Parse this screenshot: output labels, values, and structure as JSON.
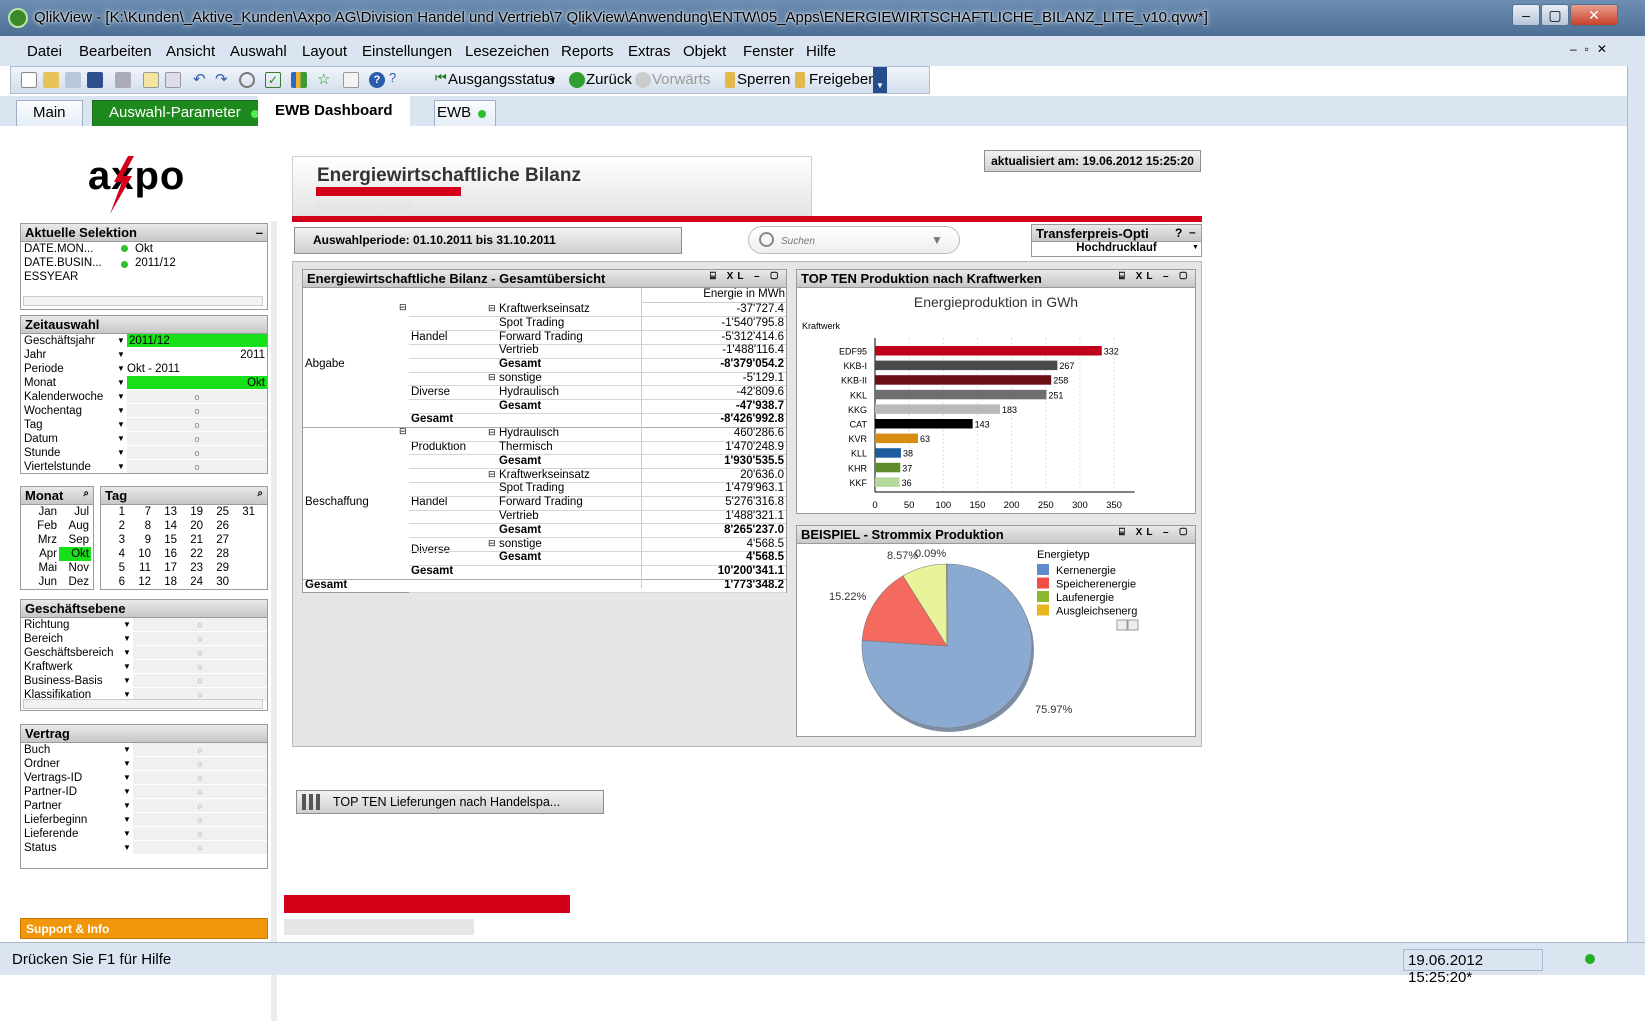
{
  "window": {
    "title": "QlikView - [K:\\Kunden\\_Aktive_Kunden\\Axpo AG\\Division Handel und Vertrieb\\7 QlikView\\Anwendung\\ENTW\\05_Apps\\ENERGIEWIRTSCHAFTLICHE_BILANZ_LITE_v10.qvw*]"
  },
  "menu": [
    "Datei",
    "Bearbeiten",
    "Ansicht",
    "Auswahl",
    "Layout",
    "Einstellungen",
    "Lesezeichen",
    "Reports",
    "Extras",
    "Objekt",
    "Fenster",
    "Hilfe"
  ],
  "toolbar": {
    "ausgangsstatus": "Ausgangsstatus",
    "zurueck": "Zurück",
    "vorwaerts": "Vorwärts",
    "sperren": "Sperren",
    "freigeben": "Freigeben"
  },
  "tabs": [
    "Main",
    "Auswahl-Parameter",
    "EWB Dashboard",
    "EWB"
  ],
  "logo": "axpo",
  "header": {
    "title": "Energiewirtschaftliche Bilanz",
    "updated": "aktualisiert am: 19.06.2012 15:25:20",
    "period": "Auswahlperiode: 01.10.2011 bis 31.10.2011",
    "search_placeholder": "Suchen"
  },
  "transfer": {
    "title": "Transferpreis-Opti",
    "help": "?",
    "value": "Hochdrucklauf"
  },
  "aktuelle_selektion": {
    "title": "Aktuelle Selektion",
    "rows": [
      {
        "field": "DATE.MON...",
        "value": "Okt"
      },
      {
        "field": "DATE.BUSIN...",
        "value": "2011/12"
      },
      {
        "field": "ESSYEAR",
        "value": ""
      }
    ]
  },
  "zeitauswahl": {
    "title": "Zeitauswahl",
    "rows": [
      {
        "label": "Geschäftsjahr",
        "value": "2011/12",
        "state": "sel"
      },
      {
        "label": "Jahr",
        "value": "2011",
        "state": "w"
      },
      {
        "label": "Periode",
        "value": "Okt - 2011",
        "state": "w"
      },
      {
        "label": "Monat",
        "value": "Okt",
        "state": "sel"
      },
      {
        "label": "Kalenderwoche",
        "value": "o",
        "state": ""
      },
      {
        "label": "Wochentag",
        "value": "o",
        "state": ""
      },
      {
        "label": "Tag",
        "value": "o",
        "state": ""
      },
      {
        "label": "Datum",
        "value": "o",
        "state": ""
      },
      {
        "label": "Stunde",
        "value": "o",
        "state": ""
      },
      {
        "label": "Viertelstunde",
        "value": "o",
        "state": ""
      }
    ]
  },
  "monat": {
    "title": "Monat",
    "col1": [
      "Jan",
      "Feb",
      "Mrz",
      "Apr",
      "Mai",
      "Jun"
    ],
    "col2": [
      "Jul",
      "Aug",
      "Sep",
      "Okt",
      "Nov",
      "Dez"
    ]
  },
  "tag": {
    "title": "Tag",
    "rows": [
      [
        "1",
        "7",
        "13",
        "19",
        "25",
        "31"
      ],
      [
        "2",
        "8",
        "14",
        "20",
        "26",
        ""
      ],
      [
        "3",
        "9",
        "15",
        "21",
        "27",
        ""
      ],
      [
        "4",
        "10",
        "16",
        "22",
        "28",
        ""
      ],
      [
        "5",
        "11",
        "17",
        "23",
        "29",
        ""
      ],
      [
        "6",
        "12",
        "18",
        "24",
        "30",
        ""
      ]
    ]
  },
  "geschaeftsebene": {
    "title": "Geschäftsebene",
    "rows": [
      "Richtung",
      "Bereich",
      "Geschäftsbereich",
      "Kraftwerk",
      "Business-Basis",
      "Klassifikation"
    ]
  },
  "vertrag": {
    "title": "Vertrag",
    "rows": [
      "Buch",
      "Ordner",
      "Vertrags-ID",
      "Partner-ID",
      "Partner",
      "Lieferbeginn",
      "Lieferende",
      "Status"
    ]
  },
  "support": "Support & Info",
  "bilanz": {
    "title": "Energiewirtschaftliche Bilanz - Gesamtübersicht",
    "col_header": "Energie in MWh",
    "l1": [
      "Abgabe",
      "Beschaffung",
      "Gesamt"
    ],
    "l2": [
      "Handel",
      "Diverse",
      "Gesamt",
      "Produktion",
      "Handel",
      "Diverse",
      "Gesamt"
    ],
    "rows": [
      {
        "label": "Kraftwerkseinsatz",
        "value": "-37'727.4",
        "bold": false
      },
      {
        "label": "Spot Trading",
        "value": "-1'540'795.8",
        "bold": false
      },
      {
        "label": "Forward Trading",
        "value": "-5'312'414.6",
        "bold": false
      },
      {
        "label": "Vertrieb",
        "value": "-1'488'116.4",
        "bold": false
      },
      {
        "label": "Gesamt",
        "value": "-8'379'054.2",
        "bold": true
      },
      {
        "label": "sonstige",
        "value": "-5'129.1",
        "bold": false
      },
      {
        "label": "Hydraulisch",
        "value": "-42'809.6",
        "bold": false
      },
      {
        "label": "Gesamt",
        "value": "-47'938.7",
        "bold": true
      },
      {
        "label": "",
        "value": "-8'426'992.8",
        "bold": true
      },
      {
        "label": "Hydraulisch",
        "value": "460'286.6",
        "bold": false
      },
      {
        "label": "Thermisch",
        "value": "1'470'248.9",
        "bold": false
      },
      {
        "label": "Gesamt",
        "value": "1'930'535.5",
        "bold": true
      },
      {
        "label": "Kraftwerkseinsatz",
        "value": "20'636.0",
        "bold": false
      },
      {
        "label": "Spot Trading",
        "value": "1'479'963.1",
        "bold": false
      },
      {
        "label": "Forward Trading",
        "value": "5'276'316.8",
        "bold": false
      },
      {
        "label": "Vertrieb",
        "value": "1'488'321.1",
        "bold": false
      },
      {
        "label": "Gesamt",
        "value": "8'265'237.0",
        "bold": true
      },
      {
        "label": "sonstige",
        "value": "4'568.5",
        "bold": false
      },
      {
        "label": "Gesamt",
        "value": "4'568.5",
        "bold": true
      },
      {
        "label": "",
        "value": "10'200'341.1",
        "bold": true
      },
      {
        "label": "",
        "value": "1'773'348.2",
        "bold": true
      }
    ]
  },
  "topten": {
    "title": "TOP TEN Produktion nach Kraftwerken",
    "chart_data": {
      "type": "bar",
      "orientation": "horizontal",
      "title": "Energieproduktion in GWh",
      "ylabel": "Kraftwerk",
      "xlabel": "GWh",
      "categories": [
        "EDF95",
        "KKB-I",
        "KKB-II",
        "KKL",
        "KKG",
        "CAT",
        "KVR",
        "KLL",
        "KHR",
        "KKF"
      ],
      "values": [
        332,
        267,
        258,
        251,
        183,
        143,
        63,
        38,
        37,
        36
      ],
      "colors": [
        "#c0001a",
        "#4a4a4a",
        "#6a0f16",
        "#6e6e6e",
        "#b9b9b9",
        "#000000",
        "#d98c12",
        "#1f5e9e",
        "#5e8b2c",
        "#b5d99a"
      ],
      "xticks": [
        0,
        50,
        100,
        150,
        200,
        250,
        300,
        350
      ],
      "xlim": [
        0,
        380
      ],
      "grid": true
    }
  },
  "strommix": {
    "title": "BEISPIEL - Strommix Produktion",
    "legend_title": "Energietyp",
    "chart_data": {
      "type": "pie",
      "labels": [
        "Kernenergie",
        "Speicherenergie",
        "Laufenergie",
        "Ausgleichsenerg"
      ],
      "values": [
        75.97,
        15.22,
        8.57,
        0.09
      ],
      "display": [
        "75.97%",
        "15.22%",
        "8.57%",
        "0.09%"
      ],
      "colors": [
        "#8aaad2",
        "#f46a5e",
        "#e8f39a",
        "#e8c23a"
      ],
      "legend_colors": [
        "#5e8ccf",
        "#f14d43",
        "#8db82f",
        "#e8b420"
      ],
      "legend": "right"
    }
  },
  "minimized": "TOP  TEN  Lieferungen  nach  Handelspa...",
  "status": {
    "help": "Drücken Sie F1 für Hilfe",
    "timestamp": "19.06.2012 15:25:20*"
  }
}
